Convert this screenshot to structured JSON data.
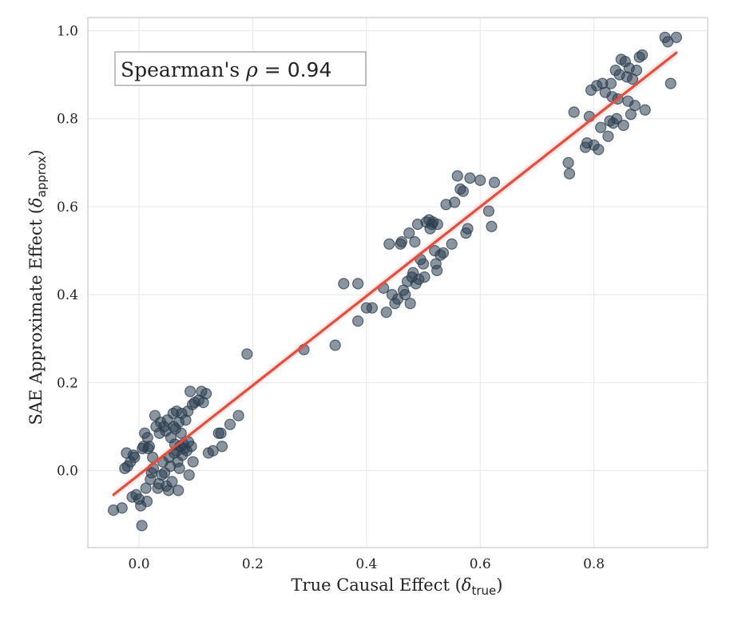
{
  "chart_data": {
    "type": "scatter",
    "xlabel": "True Causal Effect (δ_true)",
    "xlabel_main": "True Causal Effect (",
    "xlabel_sym": "δ",
    "xlabel_sub": "true",
    "xlabel_close": ")",
    "ylabel": "SAE Approximate Effect (δ_approx)",
    "ylabel_main": "SAE Approximate Effect (",
    "ylabel_sym": "δ",
    "ylabel_sub": "approx",
    "ylabel_close": ")",
    "xlim": [
      -0.09,
      1.0
    ],
    "ylim": [
      -0.175,
      1.03
    ],
    "xticks": [
      0.0,
      0.2,
      0.4,
      0.6,
      0.8
    ],
    "xtick_labels": [
      "0.0",
      "0.2",
      "0.4",
      "0.6",
      "0.8"
    ],
    "yticks": [
      0.0,
      0.2,
      0.4,
      0.6,
      0.8,
      1.0
    ],
    "ytick_labels": [
      "0.0",
      "0.2",
      "0.4",
      "0.6",
      "0.8",
      "1.0"
    ],
    "grid": true,
    "annotation": {
      "text": "Spearman's ρ = 0.94",
      "label": "Spearman's ",
      "symbol": "ρ",
      "value_text": " = 0.94",
      "position": "top-left"
    },
    "point_color": "#2c3e50",
    "line_color": "#e74c3c",
    "series": [
      {
        "name": "points",
        "points": [
          [
            -0.045,
            -0.09
          ],
          [
            -0.03,
            -0.085
          ],
          [
            -0.025,
            0.005
          ],
          [
            -0.022,
            0.04
          ],
          [
            -0.02,
            0.01
          ],
          [
            -0.015,
            0.02
          ],
          [
            -0.01,
            0.035
          ],
          [
            -0.012,
            -0.06
          ],
          [
            -0.005,
            -0.055
          ],
          [
            -0.008,
            0.03
          ],
          [
            0.0,
            -0.065
          ],
          [
            0.003,
            -0.08
          ],
          [
            0.005,
            -0.125
          ],
          [
            0.006,
            0.05
          ],
          [
            0.008,
            0.055
          ],
          [
            0.01,
            0.085
          ],
          [
            0.012,
            -0.04
          ],
          [
            0.014,
            -0.07
          ],
          [
            0.015,
            0.075
          ],
          [
            0.016,
            0.05
          ],
          [
            0.018,
            0.055
          ],
          [
            0.02,
            -0.02
          ],
          [
            0.022,
            -0.005
          ],
          [
            0.024,
            0.03
          ],
          [
            0.025,
            0.005
          ],
          [
            0.028,
            0.125
          ],
          [
            0.03,
            0.1
          ],
          [
            0.033,
            -0.04
          ],
          [
            0.035,
            -0.03
          ],
          [
            0.036,
            0.085
          ],
          [
            0.038,
            0.11
          ],
          [
            0.04,
            -0.01
          ],
          [
            0.042,
            0.02
          ],
          [
            0.044,
            0.1
          ],
          [
            0.045,
            -0.005
          ],
          [
            0.047,
            0.09
          ],
          [
            0.048,
            -0.035
          ],
          [
            0.05,
            0.115
          ],
          [
            0.052,
            -0.045
          ],
          [
            0.053,
            0.03
          ],
          [
            0.055,
            0.01
          ],
          [
            0.056,
            0.075
          ],
          [
            0.058,
            -0.025
          ],
          [
            0.06,
            0.13
          ],
          [
            0.061,
            0.1
          ],
          [
            0.062,
            0.04
          ],
          [
            0.063,
            0.06
          ],
          [
            0.064,
            0.095
          ],
          [
            0.066,
            0.135
          ],
          [
            0.067,
            0.045
          ],
          [
            0.068,
            0.02
          ],
          [
            0.069,
            -0.045
          ],
          [
            0.07,
            0.11
          ],
          [
            0.071,
            0.005
          ],
          [
            0.072,
            0.055
          ],
          [
            0.074,
            0.085
          ],
          [
            0.075,
            0.13
          ],
          [
            0.076,
            0.035
          ],
          [
            0.078,
            0.06
          ],
          [
            0.08,
            0.05
          ],
          [
            0.082,
            0.115
          ],
          [
            0.084,
            0.045
          ],
          [
            0.086,
            0.135
          ],
          [
            0.087,
            0.065
          ],
          [
            0.088,
            -0.01
          ],
          [
            0.09,
            0.18
          ],
          [
            0.092,
            0.055
          ],
          [
            0.094,
            0.15
          ],
          [
            0.095,
            0.02
          ],
          [
            0.098,
            0.155
          ],
          [
            0.105,
            0.16
          ],
          [
            0.11,
            0.18
          ],
          [
            0.113,
            0.155
          ],
          [
            0.118,
            0.175
          ],
          [
            0.122,
            0.04
          ],
          [
            0.13,
            0.045
          ],
          [
            0.14,
            0.085
          ],
          [
            0.144,
            0.085
          ],
          [
            0.146,
            0.055
          ],
          [
            0.16,
            0.105
          ],
          [
            0.175,
            0.125
          ],
          [
            0.19,
            0.265
          ],
          [
            0.29,
            0.275
          ],
          [
            0.345,
            0.285
          ],
          [
            0.36,
            0.425
          ],
          [
            0.385,
            0.34
          ],
          [
            0.385,
            0.425
          ],
          [
            0.4,
            0.37
          ],
          [
            0.41,
            0.37
          ],
          [
            0.43,
            0.415
          ],
          [
            0.435,
            0.36
          ],
          [
            0.44,
            0.515
          ],
          [
            0.445,
            0.4
          ],
          [
            0.45,
            0.38
          ],
          [
            0.455,
            0.39
          ],
          [
            0.46,
            0.515
          ],
          [
            0.462,
            0.52
          ],
          [
            0.465,
            0.41
          ],
          [
            0.468,
            0.4
          ],
          [
            0.472,
            0.43
          ],
          [
            0.475,
            0.54
          ],
          [
            0.477,
            0.38
          ],
          [
            0.48,
            0.44
          ],
          [
            0.482,
            0.45
          ],
          [
            0.485,
            0.52
          ],
          [
            0.487,
            0.425
          ],
          [
            0.49,
            0.56
          ],
          [
            0.492,
            0.435
          ],
          [
            0.495,
            0.48
          ],
          [
            0.5,
            0.47
          ],
          [
            0.502,
            0.44
          ],
          [
            0.505,
            0.565
          ],
          [
            0.51,
            0.57
          ],
          [
            0.512,
            0.55
          ],
          [
            0.515,
            0.56
          ],
          [
            0.517,
            0.565
          ],
          [
            0.52,
            0.5
          ],
          [
            0.522,
            0.47
          ],
          [
            0.524,
            0.455
          ],
          [
            0.525,
            0.56
          ],
          [
            0.53,
            0.49
          ],
          [
            0.535,
            0.495
          ],
          [
            0.54,
            0.605
          ],
          [
            0.55,
            0.515
          ],
          [
            0.555,
            0.61
          ],
          [
            0.56,
            0.67
          ],
          [
            0.565,
            0.64
          ],
          [
            0.57,
            0.635
          ],
          [
            0.575,
            0.54
          ],
          [
            0.578,
            0.55
          ],
          [
            0.582,
            0.665
          ],
          [
            0.6,
            0.66
          ],
          [
            0.615,
            0.59
          ],
          [
            0.62,
            0.555
          ],
          [
            0.625,
            0.655
          ],
          [
            0.755,
            0.7
          ],
          [
            0.757,
            0.675
          ],
          [
            0.765,
            0.815
          ],
          [
            0.785,
            0.735
          ],
          [
            0.788,
            0.745
          ],
          [
            0.792,
            0.805
          ],
          [
            0.795,
            0.865
          ],
          [
            0.8,
            0.74
          ],
          [
            0.805,
            0.875
          ],
          [
            0.808,
            0.73
          ],
          [
            0.812,
            0.78
          ],
          [
            0.815,
            0.88
          ],
          [
            0.82,
            0.86
          ],
          [
            0.825,
            0.76
          ],
          [
            0.828,
            0.795
          ],
          [
            0.83,
            0.88
          ],
          [
            0.832,
            0.85
          ],
          [
            0.834,
            0.79
          ],
          [
            0.838,
            0.91
          ],
          [
            0.84,
            0.8
          ],
          [
            0.842,
            0.845
          ],
          [
            0.845,
            0.9
          ],
          [
            0.848,
            0.935
          ],
          [
            0.852,
            0.785
          ],
          [
            0.855,
            0.93
          ],
          [
            0.858,
            0.895
          ],
          [
            0.86,
            0.84
          ],
          [
            0.862,
            0.915
          ],
          [
            0.865,
            0.81
          ],
          [
            0.868,
            0.89
          ],
          [
            0.872,
            0.83
          ],
          [
            0.875,
            0.91
          ],
          [
            0.88,
            0.94
          ],
          [
            0.885,
            0.945
          ],
          [
            0.89,
            0.82
          ],
          [
            0.925,
            0.985
          ],
          [
            0.93,
            0.975
          ],
          [
            0.935,
            0.88
          ],
          [
            0.945,
            0.985
          ]
        ]
      },
      {
        "name": "regression",
        "x": [
          -0.045,
          0.945
        ],
        "y": [
          -0.055,
          0.95
        ]
      }
    ]
  }
}
